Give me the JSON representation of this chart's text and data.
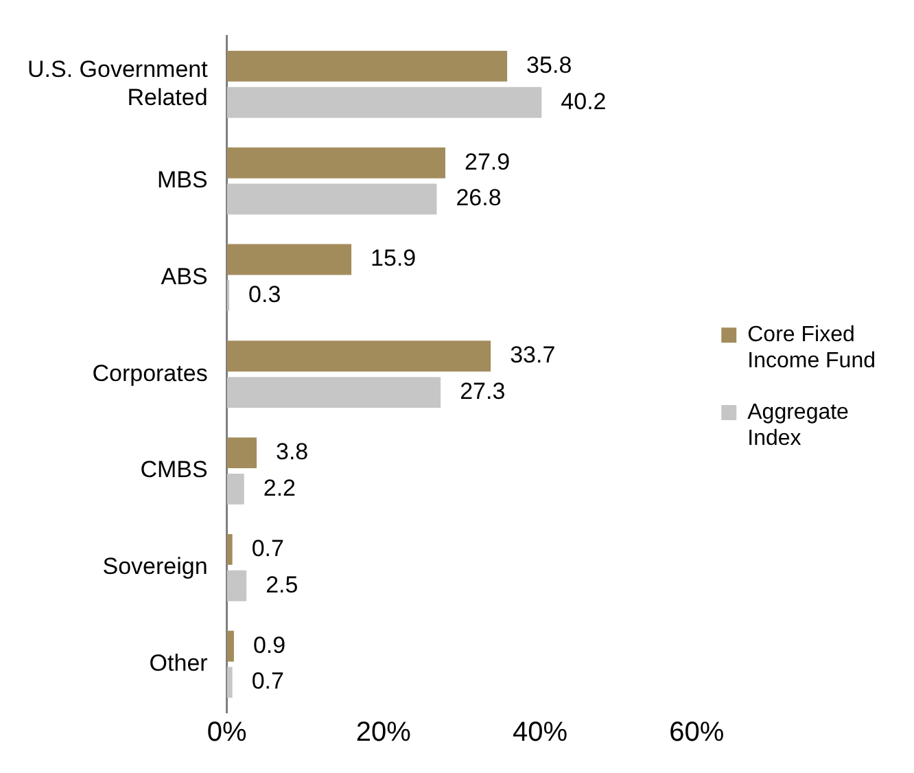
{
  "chart_data": {
    "type": "bar",
    "orientation": "horizontal",
    "categories": [
      "U.S. Government Related",
      "MBS",
      "ABS",
      "Corporates",
      "CMBS",
      "Sovereign",
      "Other"
    ],
    "series": [
      {
        "name": "Core Fixed Income Fund",
        "color": "#a38c5c",
        "values": [
          35.8,
          27.9,
          15.9,
          33.7,
          3.8,
          0.7,
          0.9
        ]
      },
      {
        "name": "Aggregate Index",
        "color": "#c6c6c6",
        "values": [
          40.2,
          26.8,
          0.3,
          27.3,
          2.2,
          2.5,
          0.7
        ]
      }
    ],
    "xlim": [
      0,
      60
    ],
    "xticks": [
      {
        "value": 0,
        "label": "0%"
      },
      {
        "value": 20,
        "label": "20%"
      },
      {
        "value": 40,
        "label": "40%"
      },
      {
        "value": 60,
        "label": "60%"
      }
    ],
    "data_labels": true,
    "grid": false,
    "legend": "right"
  }
}
